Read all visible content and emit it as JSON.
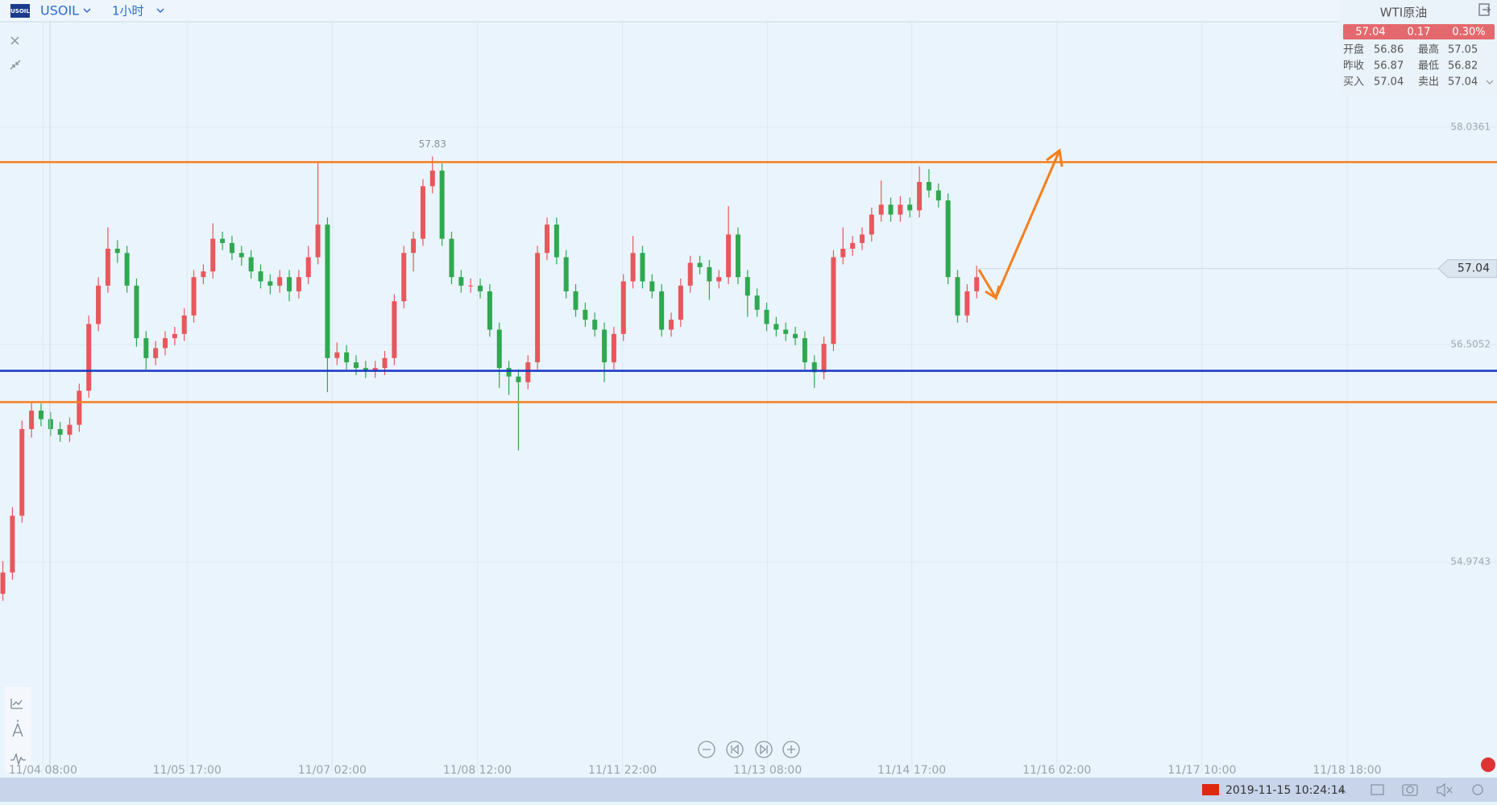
{
  "header": {
    "logo": "USOIL",
    "symbol": "USOIL",
    "interval": "1小时"
  },
  "quote": {
    "name": "WTI原油",
    "price": 57.04,
    "change": 0.17,
    "change_pct": "0.30%",
    "rows": [
      [
        "开盘",
        56.86,
        "最高",
        57.05
      ],
      [
        "昨收",
        56.87,
        "最低",
        56.82
      ],
      [
        "买入",
        57.04,
        "卖出",
        57.04
      ]
    ]
  },
  "footer": {
    "datetime": "2019-11-15 10:24:14"
  },
  "chart_data": {
    "type": "candlestick",
    "up_color": "#e8575c",
    "down_color": "#2fa84f",
    "ylim": [
      53.558,
      58.761
    ],
    "yticks": [
      58.0361,
      56.5052,
      54.9743
    ],
    "xlim": [
      -0.3,
      156.5
    ],
    "xticks": [
      {
        "value": 4.2,
        "label": "11/04 08:00"
      },
      {
        "value": 19.3,
        "label": "11/05 17:00"
      },
      {
        "value": 34.5,
        "label": "11/07 02:00"
      },
      {
        "value": 49.7,
        "label": "11/08 12:00"
      },
      {
        "value": 64.9,
        "label": "11/11 22:00"
      },
      {
        "value": 80.1,
        "label": "11/13 08:00"
      },
      {
        "value": 95.2,
        "label": "11/14 17:00"
      },
      {
        "value": 110.4,
        "label": "11/16 02:00"
      },
      {
        "value": 125.6,
        "label": "11/17 10:00"
      },
      {
        "value": 140.8,
        "label": "11/18 18:00"
      }
    ],
    "high_label_index": 45,
    "last_price": 57.04,
    "hlines": [
      {
        "value": 57.79,
        "color": "#f57f1e"
      },
      {
        "value": 56.32,
        "color": "#1636c4"
      },
      {
        "value": 56.1,
        "color": "#f57f1e"
      }
    ],
    "ohlc": [
      [
        54.75,
        54.98,
        54.7,
        54.9
      ],
      [
        54.9,
        55.36,
        54.85,
        55.3
      ],
      [
        55.3,
        55.97,
        55.25,
        55.91
      ],
      [
        55.91,
        56.1,
        55.85,
        56.04
      ],
      [
        56.04,
        56.09,
        55.93,
        55.98
      ],
      [
        55.98,
        56.03,
        55.86,
        55.91
      ],
      [
        55.91,
        55.96,
        55.82,
        55.87
      ],
      [
        55.87,
        55.99,
        55.82,
        55.94
      ],
      [
        55.94,
        56.23,
        55.89,
        56.18
      ],
      [
        56.18,
        56.71,
        56.13,
        56.65
      ],
      [
        56.65,
        56.98,
        56.6,
        56.92
      ],
      [
        56.92,
        57.33,
        56.87,
        57.18
      ],
      [
        57.18,
        57.24,
        57.08,
        57.15
      ],
      [
        57.15,
        57.2,
        56.87,
        56.92
      ],
      [
        56.92,
        56.97,
        56.49,
        56.55
      ],
      [
        56.55,
        56.6,
        56.33,
        56.41
      ],
      [
        56.41,
        56.53,
        56.36,
        56.48
      ],
      [
        56.48,
        56.6,
        56.43,
        56.55
      ],
      [
        56.55,
        56.63,
        56.5,
        56.58
      ],
      [
        56.58,
        56.76,
        56.53,
        56.71
      ],
      [
        56.71,
        57.03,
        56.66,
        56.98
      ],
      [
        56.98,
        57.07,
        56.93,
        57.02
      ],
      [
        57.02,
        57.36,
        56.97,
        57.25
      ],
      [
        57.25,
        57.3,
        57.17,
        57.22
      ],
      [
        57.22,
        57.27,
        57.1,
        57.15
      ],
      [
        57.15,
        57.2,
        57.06,
        57.12
      ],
      [
        57.12,
        57.17,
        56.97,
        57.02
      ],
      [
        57.02,
        57.07,
        56.9,
        56.95
      ],
      [
        56.95,
        57.0,
        56.86,
        56.92
      ],
      [
        56.92,
        57.03,
        56.87,
        56.98
      ],
      [
        56.98,
        57.03,
        56.81,
        56.88
      ],
      [
        56.88,
        57.03,
        56.83,
        56.98
      ],
      [
        56.98,
        57.2,
        56.93,
        57.12
      ],
      [
        57.12,
        57.79,
        57.07,
        57.35
      ],
      [
        57.35,
        57.4,
        56.17,
        56.41
      ],
      [
        56.41,
        56.52,
        56.36,
        56.45
      ],
      [
        56.45,
        56.5,
        56.33,
        56.38
      ],
      [
        56.38,
        56.43,
        56.29,
        56.34
      ],
      [
        56.34,
        56.39,
        56.27,
        56.32
      ],
      [
        56.32,
        56.39,
        56.27,
        56.34
      ],
      [
        56.34,
        56.46,
        56.29,
        56.41
      ],
      [
        56.41,
        56.86,
        56.36,
        56.81
      ],
      [
        56.81,
        57.2,
        56.76,
        57.15
      ],
      [
        57.15,
        57.3,
        57.02,
        57.25
      ],
      [
        57.25,
        57.67,
        57.2,
        57.62
      ],
      [
        57.62,
        57.83,
        57.57,
        57.73
      ],
      [
        57.73,
        57.78,
        57.2,
        57.25
      ],
      [
        57.25,
        57.3,
        56.93,
        56.98
      ],
      [
        56.98,
        57.03,
        56.87,
        56.92
      ],
      [
        56.92,
        56.97,
        56.87,
        56.92
      ],
      [
        56.92,
        56.97,
        56.83,
        56.88
      ],
      [
        56.88,
        56.93,
        56.56,
        56.61
      ],
      [
        56.61,
        56.66,
        56.2,
        56.34
      ],
      [
        56.34,
        56.39,
        56.15,
        56.28
      ],
      [
        56.28,
        56.33,
        55.76,
        56.24
      ],
      [
        56.24,
        56.43,
        56.19,
        56.38
      ],
      [
        56.38,
        57.2,
        56.33,
        57.15
      ],
      [
        57.15,
        57.4,
        57.1,
        57.35
      ],
      [
        57.35,
        57.4,
        57.07,
        57.12
      ],
      [
        57.12,
        57.17,
        56.83,
        56.88
      ],
      [
        56.88,
        56.93,
        56.7,
        56.75
      ],
      [
        56.75,
        56.8,
        56.63,
        56.68
      ],
      [
        56.68,
        56.73,
        56.56,
        56.61
      ],
      [
        56.61,
        56.66,
        56.24,
        56.38
      ],
      [
        56.38,
        56.63,
        56.33,
        56.58
      ],
      [
        56.58,
        57.0,
        56.53,
        56.95
      ],
      [
        56.95,
        57.27,
        56.9,
        57.15
      ],
      [
        57.15,
        57.2,
        56.9,
        56.95
      ],
      [
        56.95,
        57.0,
        56.83,
        56.88
      ],
      [
        56.88,
        56.93,
        56.56,
        56.61
      ],
      [
        56.61,
        56.73,
        56.56,
        56.68
      ],
      [
        56.68,
        56.97,
        56.63,
        56.92
      ],
      [
        56.92,
        57.13,
        56.87,
        57.08
      ],
      [
        57.08,
        57.13,
        57.0,
        57.05
      ],
      [
        57.05,
        57.1,
        56.82,
        56.95
      ],
      [
        56.95,
        57.03,
        56.9,
        56.98
      ],
      [
        56.98,
        57.48,
        56.93,
        57.28
      ],
      [
        57.28,
        57.33,
        56.93,
        56.98
      ],
      [
        56.98,
        57.03,
        56.7,
        56.85
      ],
      [
        56.85,
        56.9,
        56.7,
        56.75
      ],
      [
        56.75,
        56.8,
        56.6,
        56.65
      ],
      [
        56.65,
        56.7,
        56.56,
        56.61
      ],
      [
        56.61,
        56.66,
        56.53,
        56.58
      ],
      [
        56.58,
        56.63,
        56.5,
        56.55
      ],
      [
        56.55,
        56.6,
        56.33,
        56.38
      ],
      [
        56.38,
        56.43,
        56.2,
        56.31
      ],
      [
        56.31,
        56.56,
        56.26,
        56.51
      ],
      [
        56.51,
        57.17,
        56.46,
        57.12
      ],
      [
        57.12,
        57.33,
        57.07,
        57.18
      ],
      [
        57.18,
        57.27,
        57.13,
        57.22
      ],
      [
        57.22,
        57.33,
        57.17,
        57.28
      ],
      [
        57.28,
        57.47,
        57.23,
        57.42
      ],
      [
        57.42,
        57.66,
        57.37,
        57.49
      ],
      [
        57.49,
        57.54,
        57.37,
        57.42
      ],
      [
        57.42,
        57.55,
        57.37,
        57.49
      ],
      [
        57.49,
        57.54,
        57.4,
        57.45
      ],
      [
        57.45,
        57.76,
        57.4,
        57.65
      ],
      [
        57.65,
        57.74,
        57.54,
        57.59
      ],
      [
        57.59,
        57.64,
        57.47,
        57.52
      ],
      [
        57.52,
        57.57,
        56.93,
        56.98
      ],
      [
        56.98,
        57.03,
        56.66,
        56.71
      ],
      [
        56.71,
        56.93,
        56.66,
        56.88
      ],
      [
        56.88,
        57.06,
        56.83,
        56.98
      ]
    ]
  }
}
